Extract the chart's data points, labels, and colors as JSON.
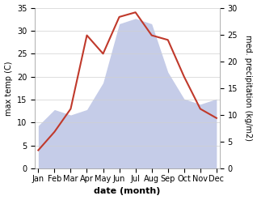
{
  "months": [
    "Jan",
    "Feb",
    "Mar",
    "Apr",
    "May",
    "Jun",
    "Jul",
    "Aug",
    "Sep",
    "Oct",
    "Nov",
    "Dec"
  ],
  "temperature": [
    4,
    8,
    13,
    29,
    25,
    33,
    34,
    29,
    28,
    20,
    13,
    11
  ],
  "precipitation": [
    8,
    11,
    10,
    11,
    16,
    27,
    28,
    27,
    18,
    13,
    12,
    13
  ],
  "temp_color": "#c0392b",
  "precip_color_fill": "#c5cce8",
  "temp_ylim": [
    0,
    35
  ],
  "precip_ylim": [
    0,
    30
  ],
  "temp_yticks": [
    0,
    5,
    10,
    15,
    20,
    25,
    30,
    35
  ],
  "precip_yticks": [
    0,
    5,
    10,
    15,
    20,
    25,
    30
  ],
  "xlabel": "date (month)",
  "ylabel_left": "max temp (C)",
  "ylabel_right": "med. precipitation (kg/m2)",
  "bg_color": "#ffffff",
  "grid_color": "#d0d0d0",
  "label_fontsize": 8,
  "tick_fontsize": 7
}
